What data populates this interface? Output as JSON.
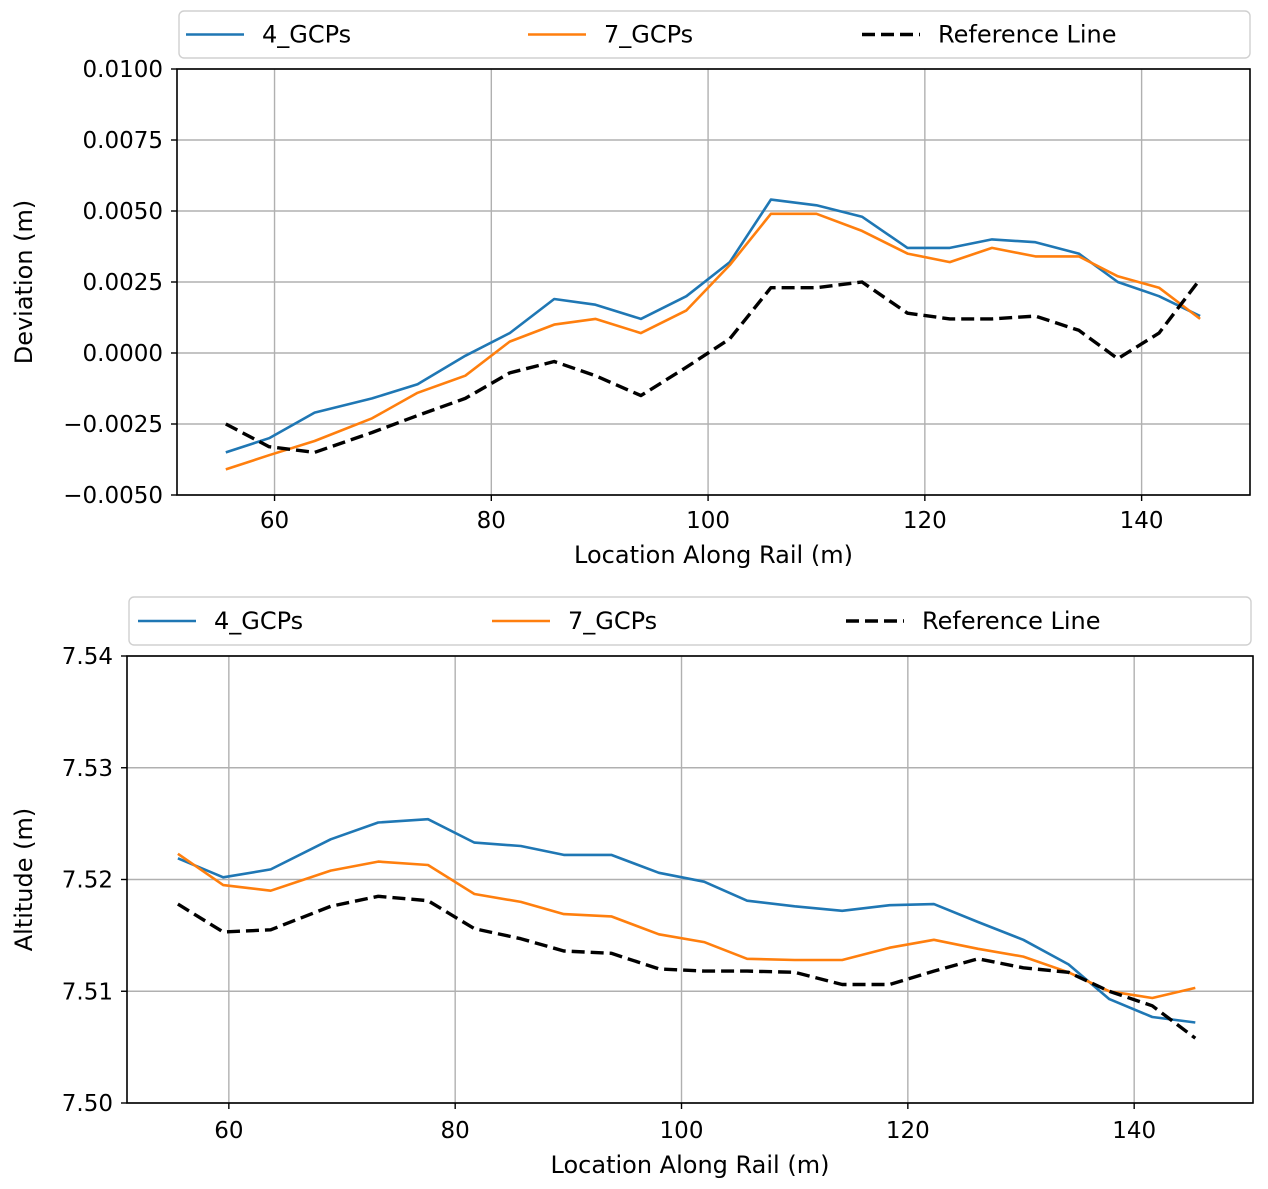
{
  "chart_data": [
    {
      "type": "line",
      "title": "",
      "xlabel": "Location Along Rail (m)",
      "ylabel": "Deviation (m)",
      "xlim": [
        51,
        150
      ],
      "ylim": [
        -0.005,
        0.01
      ],
      "xticks": [
        60,
        80,
        100,
        120,
        140
      ],
      "xtick_labels": [
        "60",
        "80",
        "100",
        "120",
        "140"
      ],
      "yticks": [
        -0.005,
        -0.0025,
        0.0,
        0.0025,
        0.005,
        0.0075,
        0.01
      ],
      "ytick_labels": [
        "−0.0050",
        "−0.0025",
        "0.0000",
        "0.0025",
        "0.0050",
        "0.0075",
        "0.0100"
      ],
      "grid": true,
      "legend_position": "top",
      "series": [
        {
          "name": "4_GCPs",
          "color": "#1f77b4",
          "style": "solid",
          "x": [
            55.5,
            59.5,
            63.7,
            69.0,
            73.2,
            77.6,
            81.7,
            85.8,
            89.6,
            93.8,
            98.0,
            102.0,
            105.8,
            110.0,
            114.2,
            118.4,
            122.3,
            126.2,
            130.2,
            134.2,
            137.8,
            141.6,
            145.4
          ],
          "y": [
            -0.0035,
            -0.003,
            -0.0021,
            -0.0016,
            -0.0011,
            -0.0001,
            0.0007,
            0.0019,
            0.0017,
            0.0012,
            0.002,
            0.0032,
            0.0054,
            0.0052,
            0.0048,
            0.0037,
            0.0037,
            0.004,
            0.0039,
            0.0035,
            0.0025,
            0.002,
            0.0013
          ]
        },
        {
          "name": "7_GCPs",
          "color": "#ff7f0e",
          "style": "solid",
          "x": [
            55.5,
            59.5,
            63.7,
            69.0,
            73.2,
            77.6,
            81.7,
            85.8,
            89.6,
            93.8,
            98.0,
            102.0,
            105.8,
            110.0,
            114.2,
            118.4,
            122.3,
            126.2,
            130.2,
            134.2,
            137.8,
            141.6,
            145.4
          ],
          "y": [
            -0.0041,
            -0.0036,
            -0.0031,
            -0.0023,
            -0.0014,
            -0.0008,
            0.0004,
            0.001,
            0.0012,
            0.0007,
            0.0015,
            0.0031,
            0.0049,
            0.0049,
            0.0043,
            0.0035,
            0.0032,
            0.0037,
            0.0034,
            0.0034,
            0.0027,
            0.0023,
            0.0012
          ]
        },
        {
          "name": "Reference Line",
          "color": "#000000",
          "style": "dashed",
          "x": [
            55.5,
            59.5,
            63.7,
            69.0,
            73.2,
            77.6,
            81.7,
            85.8,
            89.6,
            93.8,
            98.0,
            102.0,
            105.8,
            110.0,
            114.2,
            118.4,
            122.3,
            126.2,
            130.2,
            134.2,
            137.8,
            141.6,
            145.4
          ],
          "y": [
            -0.0025,
            -0.0033,
            -0.0035,
            -0.0028,
            -0.0022,
            -0.0016,
            -0.0007,
            -0.0003,
            -0.0008,
            -0.0015,
            -0.0005,
            0.0005,
            0.0023,
            0.0023,
            0.0025,
            0.0014,
            0.0012,
            0.0012,
            0.0013,
            0.0008,
            -0.0002,
            0.0007,
            0.0026
          ]
        }
      ]
    },
    {
      "type": "line",
      "title": "",
      "xlabel": "Location Along Rail (m)",
      "ylabel": "Altitude (m)",
      "xlim": [
        51,
        150.5
      ],
      "ylim": [
        7.5,
        7.54
      ],
      "xticks": [
        60,
        80,
        100,
        120,
        140
      ],
      "xtick_labels": [
        "60",
        "80",
        "100",
        "120",
        "140"
      ],
      "yticks": [
        7.5,
        7.51,
        7.52,
        7.53,
        7.54
      ],
      "ytick_labels": [
        "7.50",
        "7.51",
        "7.52",
        "7.53",
        "7.54"
      ],
      "grid": true,
      "legend_position": "top",
      "series": [
        {
          "name": "4_GCPs",
          "color": "#1f77b4",
          "style": "solid",
          "x": [
            55.5,
            59.5,
            63.7,
            69.0,
            73.2,
            77.6,
            81.7,
            85.8,
            89.6,
            93.8,
            98.0,
            102.0,
            105.8,
            110.0,
            114.2,
            118.4,
            122.3,
            126.2,
            130.2,
            134.2,
            137.8,
            141.6,
            145.4
          ],
          "y": [
            7.5219,
            7.5202,
            7.5209,
            7.5236,
            7.5251,
            7.5254,
            7.5233,
            7.523,
            7.5222,
            7.5222,
            7.5206,
            7.5198,
            7.5181,
            7.5176,
            7.5172,
            7.5177,
            7.5178,
            7.5162,
            7.5146,
            7.5124,
            7.5093,
            7.5077,
            7.5072
          ]
        },
        {
          "name": "7_GCPs",
          "color": "#ff7f0e",
          "style": "solid",
          "x": [
            55.5,
            59.5,
            63.7,
            69.0,
            73.2,
            77.6,
            81.7,
            85.8,
            89.6,
            93.8,
            98.0,
            102.0,
            105.8,
            110.0,
            114.2,
            118.4,
            122.3,
            126.2,
            130.2,
            134.2,
            137.8,
            141.6,
            145.4
          ],
          "y": [
            7.5223,
            7.5195,
            7.519,
            7.5208,
            7.5216,
            7.5213,
            7.5187,
            7.518,
            7.5169,
            7.5167,
            7.5151,
            7.5144,
            7.5129,
            7.5128,
            7.5128,
            7.5139,
            7.5146,
            7.5138,
            7.5131,
            7.5117,
            7.51,
            7.5094,
            7.5103
          ]
        },
        {
          "name": "Reference Line",
          "color": "#000000",
          "style": "dashed",
          "x": [
            55.5,
            59.5,
            63.7,
            69.0,
            73.2,
            77.6,
            81.7,
            85.8,
            89.6,
            93.8,
            98.0,
            102.0,
            105.8,
            110.0,
            114.2,
            118.4,
            122.3,
            126.2,
            130.2,
            134.2,
            137.8,
            141.6,
            145.4
          ],
          "y": [
            7.5178,
            7.5153,
            7.5155,
            7.5176,
            7.5185,
            7.5181,
            7.5156,
            7.5147,
            7.5136,
            7.5134,
            7.512,
            7.5118,
            7.5118,
            7.5117,
            7.5106,
            7.5106,
            7.5118,
            7.5129,
            7.5121,
            7.5117,
            7.51,
            7.5087,
            7.5058
          ]
        }
      ]
    }
  ]
}
